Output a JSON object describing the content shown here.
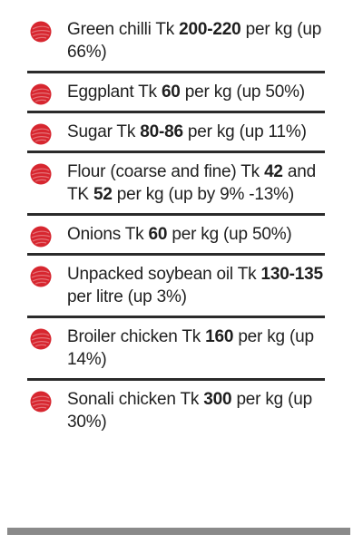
{
  "accent_color": "#d7262f",
  "bullet_icon": "red-scribble-dot-icon",
  "items": [
    {
      "name": "green-chilli",
      "parts": [
        {
          "t": "Green chilli Tk ",
          "b": false
        },
        {
          "t": "200-220",
          "b": true
        },
        {
          "t": " per kg (up 66%)",
          "b": false
        }
      ]
    },
    {
      "name": "eggplant",
      "parts": [
        {
          "t": "Eggplant Tk ",
          "b": false
        },
        {
          "t": "60",
          "b": true
        },
        {
          "t": " per kg (up 50%)",
          "b": false
        }
      ]
    },
    {
      "name": "sugar",
      "parts": [
        {
          "t": "Sugar Tk ",
          "b": false
        },
        {
          "t": "80-86",
          "b": true
        },
        {
          "t": " per kg (up 11%)",
          "b": false
        }
      ]
    },
    {
      "name": "flour",
      "parts": [
        {
          "t": "Flour (coarse and fine) Tk ",
          "b": false
        },
        {
          "t": "42",
          "b": true
        },
        {
          "t": " and TK ",
          "b": false
        },
        {
          "t": "52",
          "b": true
        },
        {
          "t": " per kg (up by 9% -13%)",
          "b": false
        }
      ]
    },
    {
      "name": "onions",
      "parts": [
        {
          "t": "Onions Tk ",
          "b": false
        },
        {
          "t": "60",
          "b": true
        },
        {
          "t": " per kg (up 50%)",
          "b": false
        }
      ]
    },
    {
      "name": "soybean-oil",
      "parts": [
        {
          "t": "Unpacked soybean oil Tk ",
          "b": false
        },
        {
          "t": "130-135",
          "b": true
        },
        {
          "t": " per litre (up 3%)",
          "b": false
        }
      ]
    },
    {
      "name": "broiler-chicken",
      "parts": [
        {
          "t": "Broiler chicken Tk ",
          "b": false
        },
        {
          "t": "160",
          "b": true
        },
        {
          "t": " per kg (up 14%)",
          "b": false
        }
      ]
    },
    {
      "name": "sonali-chicken",
      "parts": [
        {
          "t": "Sonali chicken Tk ",
          "b": false
        },
        {
          "t": "300",
          "b": true
        },
        {
          "t": " per kg (up 30%)",
          "b": false
        }
      ]
    }
  ]
}
